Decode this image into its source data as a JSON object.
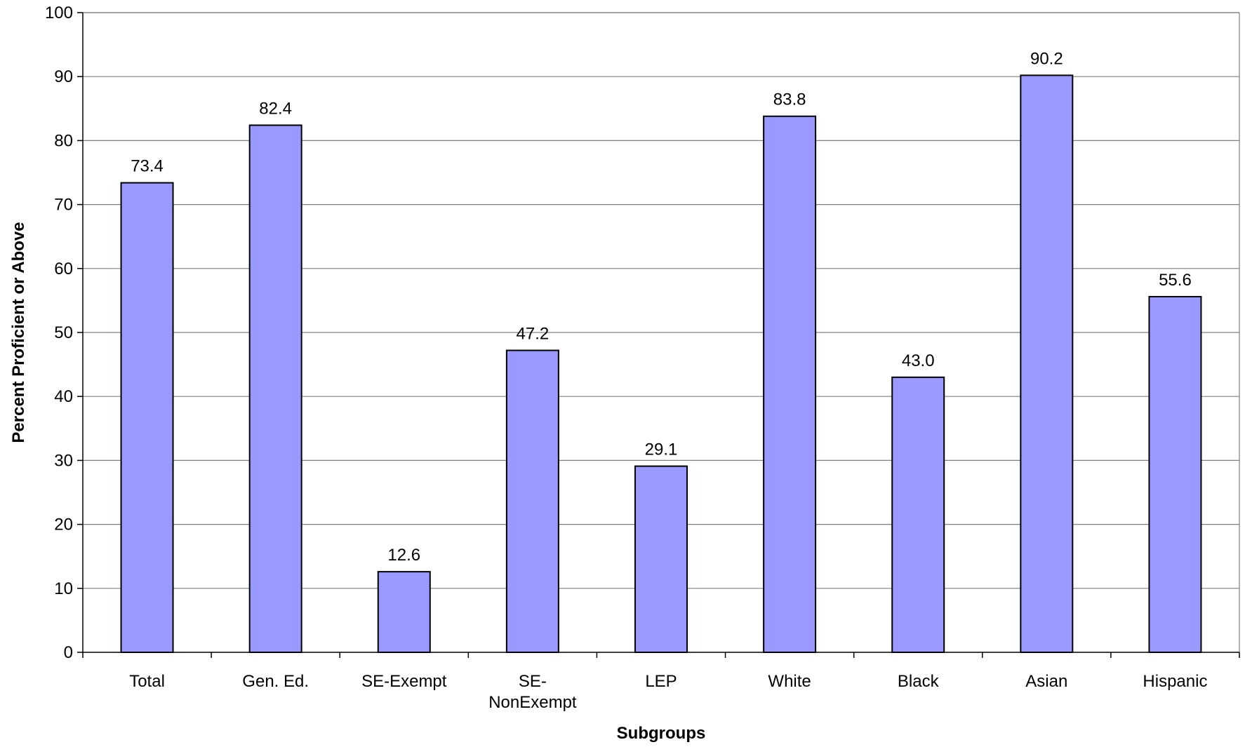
{
  "chart_data": {
    "type": "bar",
    "title": "",
    "xlabel": "Subgroups",
    "ylabel": "Percent Proficient or Above",
    "categories": [
      [
        "Total"
      ],
      [
        "Gen. Ed."
      ],
      [
        "SE-Exempt"
      ],
      [
        "SE-",
        "NonExempt"
      ],
      [
        "LEP"
      ],
      [
        "White"
      ],
      [
        "Black"
      ],
      [
        "Asian"
      ],
      [
        "Hispanic"
      ]
    ],
    "values": [
      73.4,
      82.4,
      12.6,
      47.2,
      29.1,
      83.8,
      43.0,
      90.2,
      55.6
    ],
    "value_labels": [
      "73.4",
      "82.4",
      "12.6",
      "47.2",
      "29.1",
      "83.8",
      "43.0",
      "90.2",
      "55.6"
    ],
    "ylim": [
      0,
      100
    ],
    "ytick_step": 10,
    "ytick_labels": [
      "0",
      "10",
      "20",
      "30",
      "40",
      "50",
      "60",
      "70",
      "80",
      "90",
      "100"
    ],
    "grid": true,
    "legend": "none",
    "colors": {
      "bar_fill": "#9999FF",
      "bar_stroke": "#000000",
      "grid": "#808080",
      "axis": "#000000"
    }
  }
}
